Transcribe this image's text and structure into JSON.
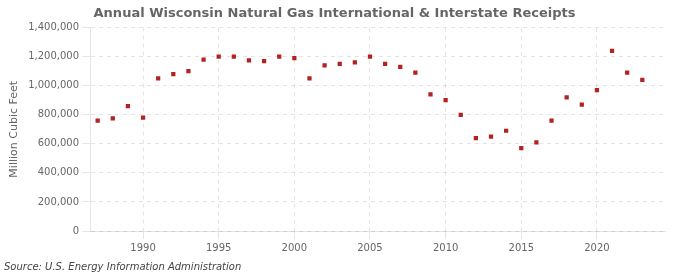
{
  "chart_data": {
    "type": "scatter",
    "title": "Annual Wisconsin Natural Gas International & Interstate Receipts",
    "ylabel": "Million Cubic Feet",
    "source": "Source: U.S. Energy Information Administration",
    "x": [
      1987,
      1988,
      1989,
      1990,
      1991,
      1992,
      1993,
      1994,
      1995,
      1996,
      1997,
      1998,
      1999,
      2000,
      2001,
      2002,
      2003,
      2004,
      2005,
      2006,
      2007,
      2008,
      2009,
      2010,
      2011,
      2012,
      2013,
      2014,
      2015,
      2016,
      2017,
      2018,
      2019,
      2020,
      2021,
      2022,
      2023
    ],
    "values": [
      760000,
      775000,
      860000,
      780000,
      1050000,
      1080000,
      1100000,
      1180000,
      1200000,
      1200000,
      1175000,
      1170000,
      1200000,
      1190000,
      1050000,
      1140000,
      1150000,
      1160000,
      1200000,
      1150000,
      1130000,
      1090000,
      940000,
      900000,
      800000,
      640000,
      650000,
      690000,
      570000,
      610000,
      760000,
      920000,
      870000,
      970000,
      1240000,
      1090000,
      1040000
    ],
    "color": "#b22222",
    "marker": "square",
    "xlim": [
      1986.5,
      2024.5
    ],
    "xticks": [
      1990,
      1995,
      2000,
      2005,
      2010,
      2015,
      2020
    ],
    "ylim": [
      0,
      1400000
    ],
    "yticks": [
      0,
      {
        "value": 200000,
        "label": "200,000"
      },
      {
        "value": 400000,
        "label": "400,000"
      },
      {
        "value": 600000,
        "label": "600,000"
      },
      {
        "value": 800000,
        "label": "800,000"
      },
      {
        "value": 1000000,
        "label": "1,000,000"
      },
      {
        "value": 1200000,
        "label": "1,200,000"
      },
      {
        "value": 1400000,
        "label": "1,400,000"
      }
    ],
    "grid": true
  }
}
